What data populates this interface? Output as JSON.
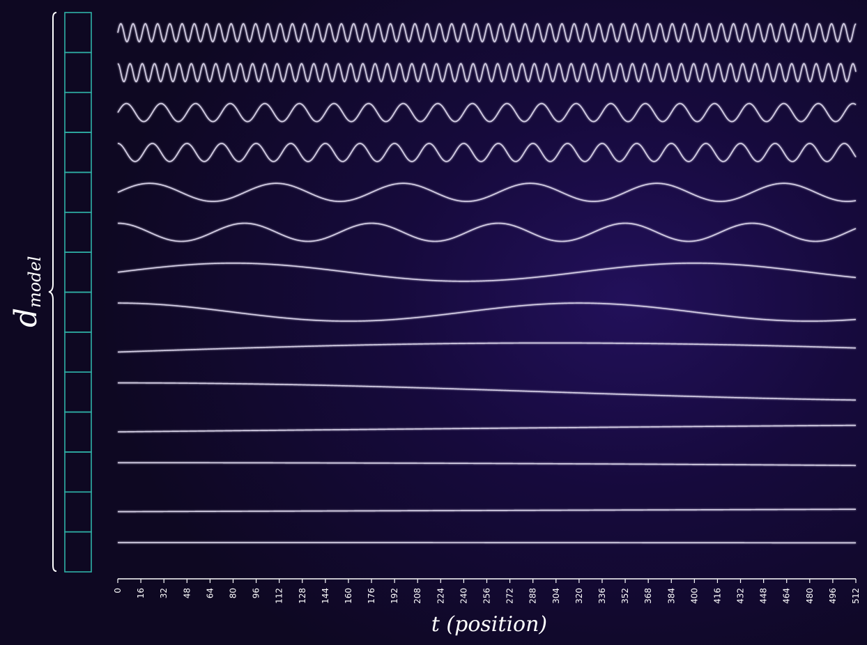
{
  "colors": {
    "background": "#160a3c",
    "wave": "#d8d2e8",
    "vector_cells": "#2fb3a8",
    "text": "#ffffff"
  },
  "vector": {
    "label_main": "d",
    "label_sub": "model",
    "cells": 14
  },
  "chart_data": {
    "type": "line",
    "title": "",
    "xlabel": "t (position)",
    "ylabel": "",
    "xlim": [
      0,
      512
    ],
    "ylim": [
      -1,
      1
    ],
    "grid": false,
    "legend": "none",
    "x_ticks": [
      0,
      16,
      32,
      48,
      64,
      80,
      96,
      112,
      128,
      144,
      160,
      176,
      192,
      208,
      224,
      240,
      256,
      272,
      288,
      304,
      320,
      336,
      352,
      368,
      384,
      400,
      416,
      432,
      448,
      464,
      480,
      496,
      512
    ],
    "series": [
      {
        "function": "sin",
        "period": 8.5,
        "phase": 0.0
      },
      {
        "function": "cos",
        "period": 8.5,
        "phase": 0.0
      },
      {
        "function": "sin",
        "period": 24,
        "phase": 0.0
      },
      {
        "function": "cos",
        "period": 24,
        "phase": 0.0
      },
      {
        "function": "sin",
        "period": 88,
        "phase": 0.0
      },
      {
        "function": "cos",
        "period": 88,
        "phase": 0.0
      },
      {
        "function": "sin",
        "period": 320,
        "phase": 0.0
      },
      {
        "function": "cos",
        "period": 320,
        "phase": 0.0
      },
      {
        "function": "sin",
        "period": 1200,
        "phase": 0.0
      },
      {
        "function": "cos",
        "period": 1200,
        "phase": 0.0
      },
      {
        "function": "sin",
        "period": 4000,
        "phase": 0.0
      },
      {
        "function": "cos",
        "period": 4000,
        "phase": 0.0
      },
      {
        "function": "sin",
        "period": 12000,
        "phase": 0.0
      },
      {
        "function": "cos",
        "period": 12000,
        "phase": 0.0
      }
    ]
  }
}
